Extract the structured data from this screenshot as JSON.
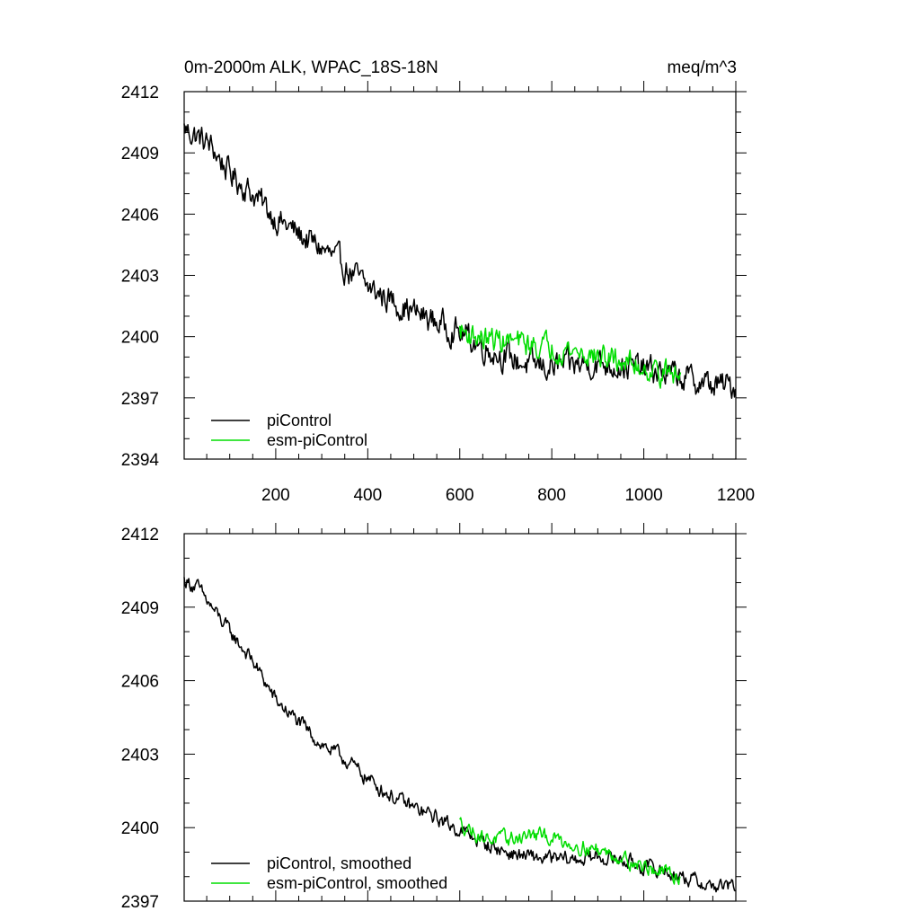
{
  "chart_data": [
    {
      "type": "line",
      "title": "0m-2000m ALK, WPAC_18S-18N",
      "units": "meq/m^3",
      "xlabel": "",
      "ylabel": "",
      "xlim": [
        1,
        1200
      ],
      "ylim": [
        2394,
        2412
      ],
      "xticks": [
        200,
        400,
        600,
        800,
        1000,
        1200
      ],
      "yticks": [
        2394,
        2397,
        2400,
        2403,
        2406,
        2409,
        2412
      ],
      "grid": false,
      "legend_position": "bottom-left",
      "series": [
        {
          "name": "piControl",
          "color": "#000000",
          "noise": 0.55,
          "x": [
            1,
            30,
            60,
            100,
            150,
            200,
            250,
            300,
            350,
            400,
            450,
            500,
            550,
            600,
            650,
            700,
            750,
            800,
            850,
            900,
            950,
            1000,
            1050,
            1100,
            1150,
            1200
          ],
          "values": [
            2410.2,
            2409.8,
            2409.3,
            2408.0,
            2407.0,
            2405.8,
            2405.0,
            2404.3,
            2403.4,
            2402.4,
            2401.8,
            2401.2,
            2400.7,
            2400.2,
            2399.5,
            2399.0,
            2398.6,
            2398.5,
            2398.6,
            2398.7,
            2398.6,
            2398.4,
            2398.2,
            2397.9,
            2397.6,
            2397.6
          ]
        },
        {
          "name": "esm-piControl",
          "color": "#00dd00",
          "noise": 0.5,
          "x": [
            600,
            650,
            700,
            750,
            800,
            850,
            900,
            950,
            1000,
            1050,
            1080
          ],
          "values": [
            2400.3,
            2399.9,
            2399.8,
            2399.6,
            2399.5,
            2399.3,
            2399.0,
            2398.8,
            2398.5,
            2398.2,
            2398.0
          ]
        }
      ]
    },
    {
      "type": "line",
      "title": "",
      "xlabel": "",
      "ylabel": "",
      "xlim": [
        1,
        1200
      ],
      "ylim": [
        2397,
        2412
      ],
      "yticks": [
        2397,
        2400,
        2403,
        2406,
        2409,
        2412
      ],
      "grid": false,
      "legend_position": "bottom-left",
      "series": [
        {
          "name": "piControl, smoothed",
          "color": "#000000",
          "noise": 0.25,
          "x": [
            1,
            30,
            60,
            100,
            150,
            200,
            250,
            300,
            350,
            400,
            450,
            500,
            550,
            600,
            650,
            700,
            750,
            800,
            850,
            900,
            950,
            1000,
            1050,
            1100,
            1150,
            1200
          ],
          "values": [
            2410.1,
            2409.8,
            2409.0,
            2408.0,
            2406.8,
            2405.2,
            2404.3,
            2403.4,
            2402.8,
            2402.0,
            2401.3,
            2400.8,
            2400.4,
            2399.9,
            2399.4,
            2399.0,
            2398.8,
            2398.7,
            2398.7,
            2398.8,
            2398.7,
            2398.4,
            2398.2,
            2397.9,
            2397.6,
            2397.6
          ]
        },
        {
          "name": "esm-piControl, smoothed",
          "color": "#00dd00",
          "noise": 0.25,
          "x": [
            600,
            650,
            700,
            750,
            800,
            850,
            900,
            950,
            1000,
            1050,
            1080
          ],
          "values": [
            2400.2,
            2399.6,
            2399.5,
            2399.7,
            2399.6,
            2399.3,
            2399.1,
            2398.8,
            2398.4,
            2398.1,
            2398.0
          ]
        }
      ]
    }
  ]
}
